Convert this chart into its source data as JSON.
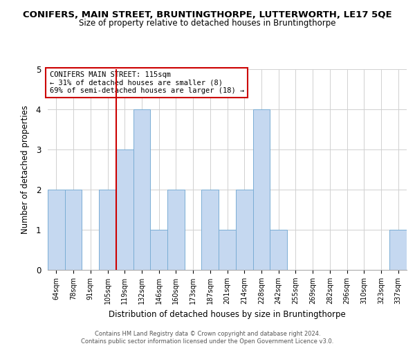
{
  "title": "CONIFERS, MAIN STREET, BRUNTINGTHORPE, LUTTERWORTH, LE17 5QE",
  "subtitle": "Size of property relative to detached houses in Bruntingthorpe",
  "xlabel": "Distribution of detached houses by size in Bruntingthorpe",
  "ylabel": "Number of detached properties",
  "bins": [
    "64sqm",
    "78sqm",
    "91sqm",
    "105sqm",
    "119sqm",
    "132sqm",
    "146sqm",
    "160sqm",
    "173sqm",
    "187sqm",
    "201sqm",
    "214sqm",
    "228sqm",
    "242sqm",
    "255sqm",
    "269sqm",
    "282sqm",
    "296sqm",
    "310sqm",
    "323sqm",
    "337sqm"
  ],
  "counts": [
    2,
    2,
    0,
    2,
    3,
    4,
    1,
    2,
    0,
    2,
    1,
    2,
    4,
    1,
    0,
    0,
    0,
    0,
    0,
    0,
    1
  ],
  "bar_color": "#c5d8f0",
  "bar_edgecolor": "#7aadd4",
  "marker_bin_index": 4,
  "annotation_line1": "CONIFERS MAIN STREET: 115sqm",
  "annotation_line2": "← 31% of detached houses are smaller (8)",
  "annotation_line3": "69% of semi-detached houses are larger (18) →",
  "annotation_box_color": "#ffffff",
  "annotation_box_edgecolor": "#cc0000",
  "marker_line_color": "#cc0000",
  "ylim": [
    0,
    5
  ],
  "yticks": [
    0,
    1,
    2,
    3,
    4,
    5
  ],
  "footer_line1": "Contains HM Land Registry data © Crown copyright and database right 2024.",
  "footer_line2": "Contains public sector information licensed under the Open Government Licence v3.0.",
  "background_color": "#ffffff",
  "grid_color": "#d0d0d0",
  "title_fontsize": 9.5,
  "subtitle_fontsize": 8.5
}
